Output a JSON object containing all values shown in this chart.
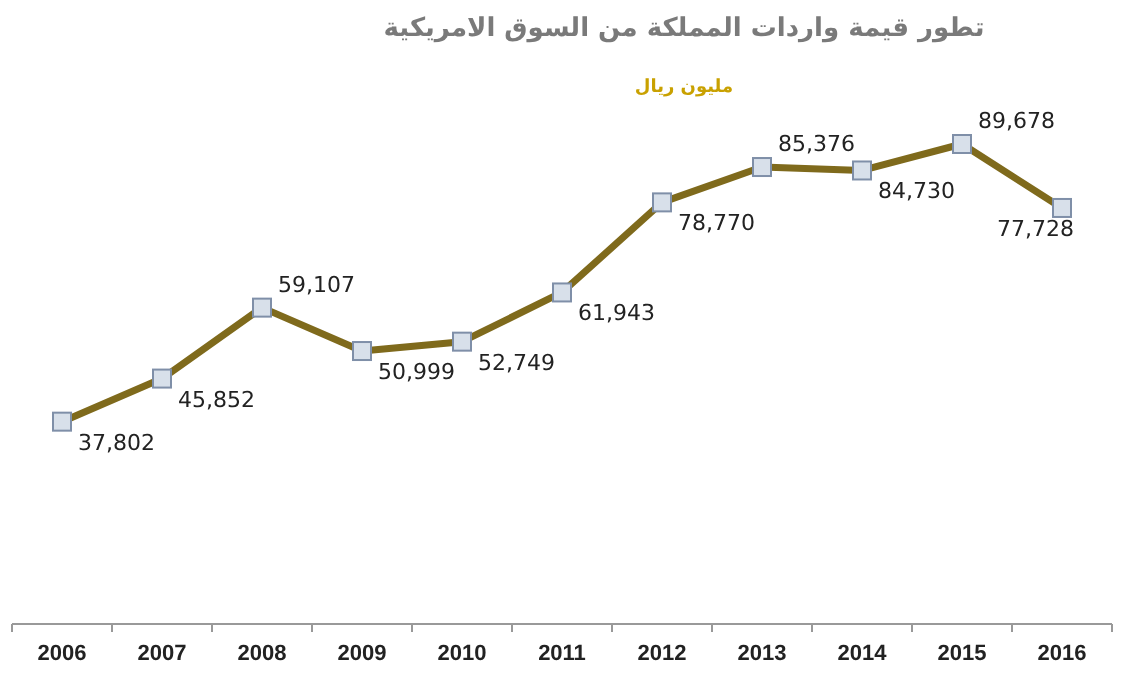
{
  "chart_data": {
    "type": "line",
    "title": "تطور قيمة واردات المملكة من السوق الامريكية",
    "subtitle": "مليون ريال",
    "categories": [
      "2006",
      "2007",
      "2008",
      "2009",
      "2010",
      "2011",
      "2012",
      "2013",
      "2014",
      "2015",
      "2016"
    ],
    "series": [
      {
        "color": "#7f6a1c",
        "values": [
          37802,
          45852,
          59107,
          50999,
          52749,
          61943,
          78770,
          85376,
          84730,
          89678,
          77728
        ],
        "value_labels": [
          "37,802",
          "45,852",
          "59,107",
          "50,999",
          "52,749",
          "61,943",
          "78,770",
          "85,376",
          "84,730",
          "89,678",
          "77,728"
        ]
      }
    ],
    "tick_labels": "x",
    "marker": "square",
    "line_style": "solid"
  }
}
